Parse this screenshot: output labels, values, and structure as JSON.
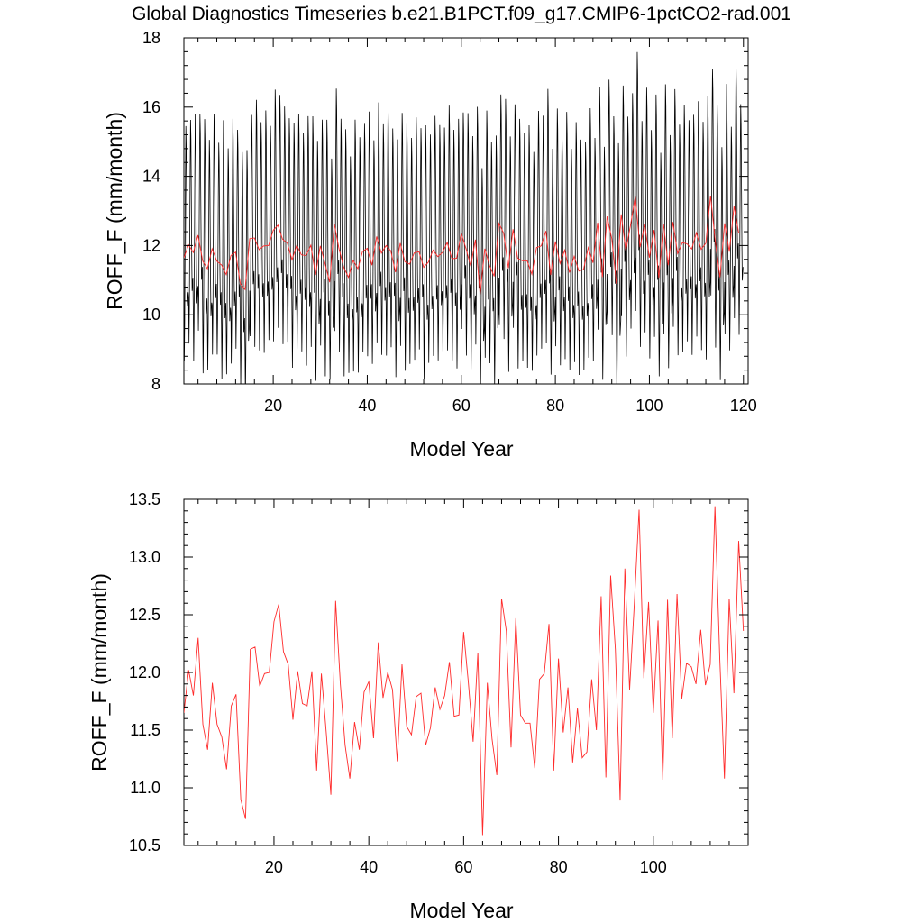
{
  "figure": {
    "title": "Global Diagnostics Timeseries b.e21.B1PCT.f09_g17.CMIP6-1pctCO2-rad.001"
  },
  "colors": {
    "monthly_series": "#000000",
    "annual_series": "#ff2a2a",
    "frame": "#000000"
  },
  "chart_data": [
    {
      "type": "line",
      "title": "",
      "xlabel": "Model Year",
      "ylabel": "ROFF_F (mm/month)",
      "xlim": [
        1,
        121
      ],
      "ylim": [
        8,
        18
      ],
      "xticks": [
        20,
        40,
        60,
        80,
        100,
        120
      ],
      "xtick_labels": [
        "20",
        "40",
        "60",
        "80",
        "100",
        "120"
      ],
      "yticks": [
        8,
        10,
        12,
        14,
        16,
        18
      ],
      "ytick_labels": [
        "8",
        "10",
        "12",
        "14",
        "16",
        "18"
      ],
      "grid": false,
      "series": [
        {
          "kind": "monthly",
          "color": "#000000",
          "x_start": 1,
          "x_step": 0.0833333,
          "monthly_anomaly": [
            -1.6,
            -3.0,
            -1.9,
            0.2,
            2.4,
            3.8,
            3.2,
            1.4,
            -0.3,
            -1.4,
            -1.2,
            -1.0
          ],
          "annual_amplitude": [
            1.0,
            0.95,
            1.05,
            0.92,
            1.08,
            0.98,
            1.02,
            0.9,
            1.1,
            0.96,
            1.04,
            0.93,
            1.0,
            1.06,
            0.94,
            1.05,
            0.97,
            1.03,
            0.91,
            1.07,
            0.99,
            1.01,
            0.95,
            1.04,
            1.0,
            0.93,
            1.06,
            0.98,
            1.02,
            0.96,
            1.09,
            0.94,
            1.03,
            0.99,
            1.05,
            0.92,
            1.07,
            1.0,
            0.97,
            1.04,
            0.95,
            1.02,
            0.98,
            1.06,
            0.93,
            1.01,
            0.99,
            1.05,
            0.96,
            1.03,
            0.94,
            1.08,
            0.97,
            1.02,
            1.0,
            0.95,
            1.04,
            0.98,
            1.06,
            0.92,
            1.03,
            0.99,
            1.01,
            0.96,
            1.05,
            0.94,
            1.07,
            0.98,
            1.02,
            1.0,
            0.95,
            1.06,
            0.97,
            1.03,
            0.93,
            1.04,
            0.99,
            1.08,
            0.96,
            1.01,
            0.98,
            1.05,
            0.94,
            1.02,
            1.0,
            0.97,
            1.06,
            0.95,
            1.03,
            0.99,
            1.04,
            0.93,
            1.07,
            0.98,
            1.02,
            1.0,
            1.1,
            0.96,
            1.04,
            0.97,
            1.03,
            0.95,
            1.06,
            0.99,
            1.01,
            0.98,
            1.05,
            0.94,
            1.02,
            1.0,
            0.97,
            1.12,
            0.96,
            1.03,
            0.99,
            1.06,
            0.95,
            1.08,
            0.98,
            1.02
          ],
          "base": "annual"
        },
        {
          "kind": "annual",
          "color": "#ff2a2a",
          "x_start": 1,
          "x_step": 1,
          "values": [
            11.65,
            12.02,
            11.8,
            12.3,
            11.55,
            11.33,
            11.91,
            11.55,
            11.44,
            11.16,
            11.71,
            11.81,
            10.9,
            10.73,
            12.2,
            12.22,
            11.88,
            11.99,
            12.0,
            12.44,
            12.59,
            12.18,
            12.07,
            11.59,
            12.01,
            11.73,
            11.71,
            12.01,
            11.15,
            11.99,
            11.49,
            10.94,
            12.62,
            11.9,
            11.37,
            11.08,
            11.57,
            11.33,
            11.83,
            11.92,
            11.43,
            12.26,
            11.78,
            12.0,
            11.85,
            11.23,
            12.07,
            11.53,
            11.46,
            11.79,
            11.82,
            11.37,
            11.52,
            11.87,
            11.68,
            11.8,
            12.09,
            11.62,
            11.63,
            12.35,
            11.91,
            11.4,
            12.17,
            10.59,
            11.91,
            11.42,
            11.11,
            12.64,
            12.36,
            11.35,
            12.47,
            11.63,
            11.56,
            11.56,
            11.17,
            11.94,
            11.99,
            12.42,
            11.15,
            12.12,
            11.48,
            11.87,
            11.22,
            11.69,
            11.26,
            11.31,
            11.94,
            11.5,
            12.66,
            11.09,
            12.84,
            12.2,
            10.89,
            12.9,
            11.85,
            12.6,
            13.41,
            11.95,
            12.61,
            11.65,
            12.45,
            11.07,
            12.63,
            11.43,
            12.68,
            11.77,
            12.08,
            12.05,
            11.9,
            12.37,
            11.89,
            12.07,
            13.44,
            12.14,
            11.08,
            12.64,
            11.82,
            13.14,
            12.36
          ]
        }
      ]
    },
    {
      "type": "line",
      "title": "",
      "xlabel": "Model Year",
      "ylabel": "ROFF_F (mm/month)",
      "xlim": [
        1,
        120
      ],
      "ylim": [
        10.5,
        13.5
      ],
      "xticks": [
        20,
        40,
        60,
        80,
        100
      ],
      "xtick_labels": [
        "20",
        "40",
        "60",
        "80",
        "100"
      ],
      "yticks": [
        10.5,
        11.0,
        11.5,
        12.0,
        12.5,
        13.0,
        13.5
      ],
      "ytick_labels": [
        "10.5",
        "11.0",
        "11.5",
        "12.0",
        "12.5",
        "13.0",
        "13.5"
      ],
      "grid": false,
      "series": [
        {
          "kind": "annual",
          "color": "#ff2a2a",
          "x_start": 1,
          "x_step": 1,
          "values_ref": "same as panel 1 annual series"
        }
      ]
    }
  ]
}
